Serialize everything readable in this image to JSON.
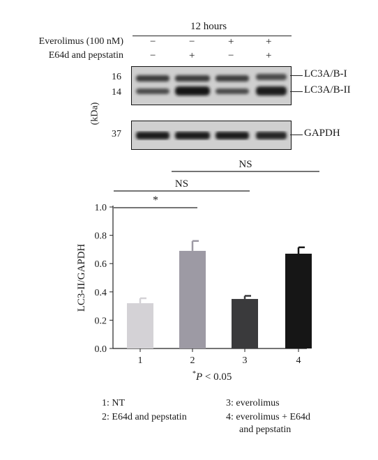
{
  "header": {
    "time_label": "12 hours",
    "treatments": [
      {
        "label": "Everolimus (100 nM)",
        "signs": [
          "−",
          "−",
          "+",
          "+"
        ]
      },
      {
        "label": "E64d and pepstatin",
        "signs": [
          "−",
          "+",
          "−",
          "+"
        ]
      }
    ]
  },
  "blot": {
    "kda_label": "(kDa)",
    "markers": [
      "16",
      "14",
      "37"
    ],
    "band_labels": [
      "LC3A/B-I",
      "LC3A/B-II",
      "GAPDH"
    ],
    "lane_count": 4
  },
  "chart_data": {
    "type": "bar",
    "categories": [
      "1",
      "2",
      "3",
      "4"
    ],
    "values": [
      0.32,
      0.69,
      0.35,
      0.67
    ],
    "errors": [
      0.035,
      0.07,
      0.022,
      0.045
    ],
    "colors": [
      "#d4d2d6",
      "#9d9aa4",
      "#3a3a3c",
      "#161616"
    ],
    "ylabel": "LC3-II/GAPDH",
    "ylim": [
      0,
      1.0
    ],
    "yticks": [
      "0.0",
      "0.2",
      "0.4",
      "0.6",
      "0.8",
      "1.0"
    ],
    "grid": false,
    "significance": [
      {
        "from": "2",
        "to": "4",
        "label": "NS"
      },
      {
        "from": "1",
        "to": "3",
        "label": "NS"
      },
      {
        "from": "1",
        "to": "2",
        "label": "*"
      }
    ],
    "footnote_star": "*",
    "footnote_p": "P",
    "footnote_rest": " < 0.05"
  },
  "legend": {
    "left": [
      "1: NT",
      "2: E64d and pepstatin"
    ],
    "right": [
      "3: everolimus",
      "4: everolimus + E64d",
      "and pepstatin"
    ]
  }
}
